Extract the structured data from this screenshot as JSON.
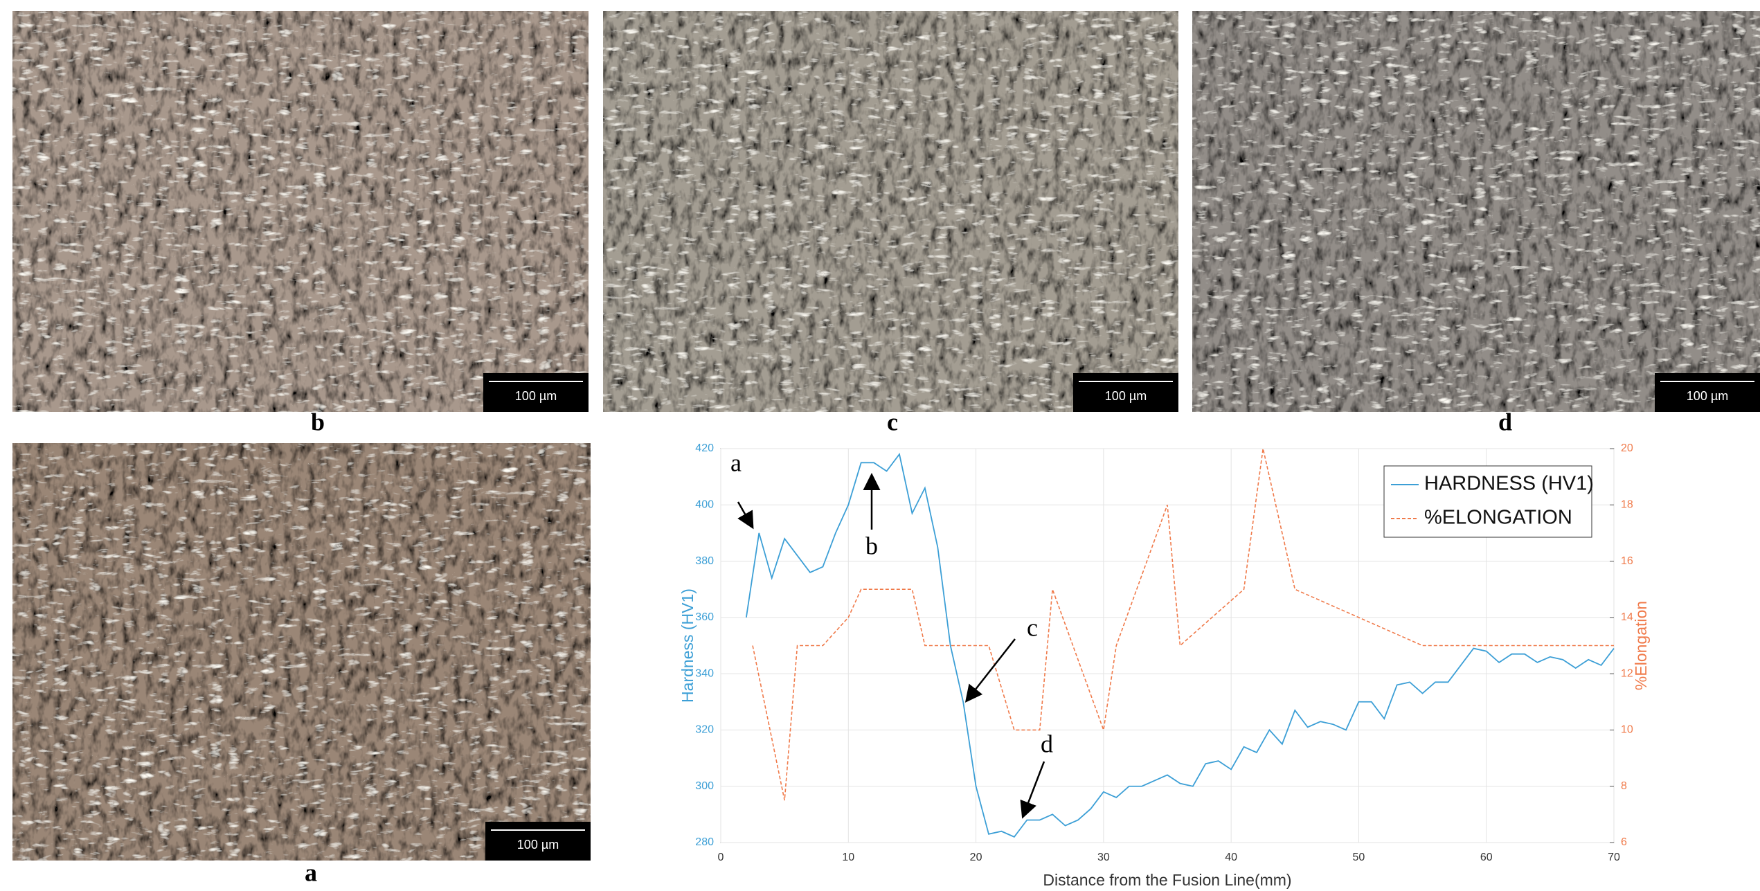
{
  "panels": [
    {
      "label": "b",
      "scale_bar": "100 µm"
    },
    {
      "label": "c",
      "scale_bar": "100 µm"
    },
    {
      "label": "d",
      "scale_bar": "100 µm"
    },
    {
      "label": "a",
      "scale_bar": "100 µm"
    }
  ],
  "chart_data": {
    "type": "line",
    "x_label": "Distance from the Fusion Line(mm)",
    "y_label": "Hardness (HV1)",
    "y2_label": "%Elongation",
    "xlim": [
      0,
      70
    ],
    "xticks": [
      0,
      10,
      20,
      30,
      40,
      50,
      60,
      70
    ],
    "ylim": [
      280,
      420
    ],
    "yticks": [
      280,
      300,
      320,
      340,
      360,
      380,
      400,
      420
    ],
    "y2lim": [
      6,
      20
    ],
    "y2ticks": [
      6,
      8,
      10,
      12,
      14,
      16,
      18,
      20
    ],
    "grid": true,
    "legend": "upper right",
    "series": [
      {
        "name": "HARDNESS (HV1)",
        "color": "#3c9fd6",
        "linestyle": "solid",
        "x": [
          2,
          3,
          4,
          5,
          6,
          7,
          8,
          9,
          10,
          11,
          12,
          13,
          14,
          15,
          16,
          17,
          18,
          19,
          20,
          21,
          22,
          23,
          24,
          25,
          26,
          27,
          28,
          29,
          30,
          31,
          32,
          33,
          34,
          35,
          36,
          37,
          38,
          39,
          40,
          41,
          42,
          43,
          44,
          45,
          46,
          47,
          48,
          49,
          50,
          51,
          52,
          53,
          54,
          55,
          56,
          57,
          58,
          59,
          60,
          61,
          62,
          63,
          64,
          65,
          66,
          67,
          68,
          69,
          70
        ],
        "values": [
          360,
          390,
          374,
          388,
          382,
          376,
          378,
          390,
          400,
          415,
          415,
          412,
          418,
          397,
          406,
          385,
          350,
          330,
          300,
          283,
          284,
          282,
          288,
          288,
          290,
          286,
          288,
          292,
          298,
          296,
          300,
          300,
          302,
          304,
          301,
          300,
          308,
          309,
          306,
          314,
          312,
          320,
          315,
          327,
          321,
          323,
          322,
          320,
          330,
          330,
          324,
          336,
          337,
          333,
          337,
          337,
          343,
          349,
          348,
          344,
          347,
          347,
          344,
          346,
          345,
          342,
          345,
          343,
          349
        ]
      },
      {
        "name": "%ELONGATION",
        "color": "#f07a4a",
        "axis": "y2",
        "linestyle": "dashed",
        "x": [
          2.5,
          5,
          6,
          8,
          10,
          11,
          15,
          16,
          21,
          23,
          25,
          26,
          30,
          31,
          35,
          36,
          41,
          42.5,
          45,
          55,
          70
        ],
        "values": [
          13,
          7.5,
          13,
          13,
          14,
          15,
          15,
          13,
          13,
          10,
          10,
          15,
          10,
          13,
          18,
          13,
          15,
          20,
          15,
          13,
          13
        ]
      }
    ],
    "annotations": [
      "a",
      "b",
      "c",
      "d"
    ]
  }
}
